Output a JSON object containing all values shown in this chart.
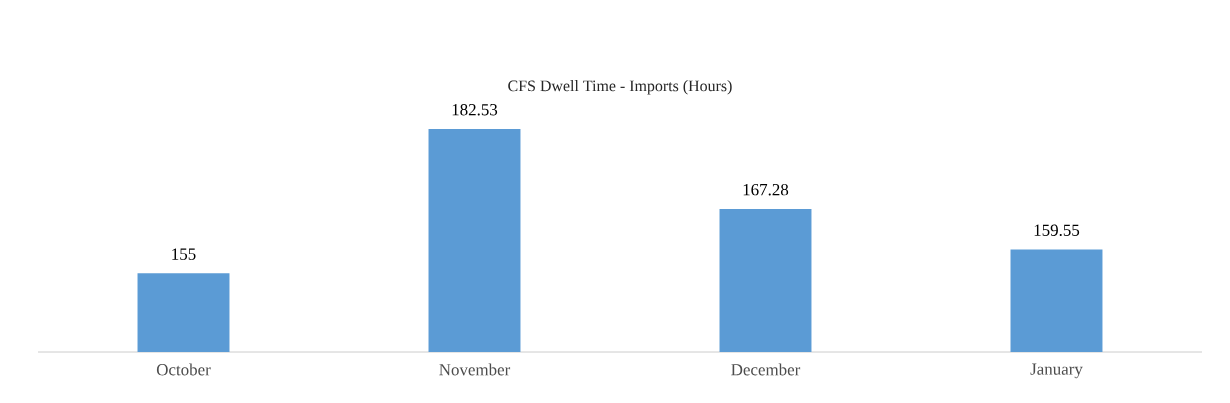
{
  "chart_data": {
    "type": "bar",
    "title": "CFS Dwell Time - Imports (Hours)",
    "categories": [
      "October",
      "November",
      "December",
      "January"
    ],
    "values": [
      155,
      182.53,
      167.28,
      159.55
    ],
    "color": "#5b9bd5",
    "ylim": [
      140,
      182.53
    ],
    "data_labels": true,
    "tick_labels": "x"
  }
}
